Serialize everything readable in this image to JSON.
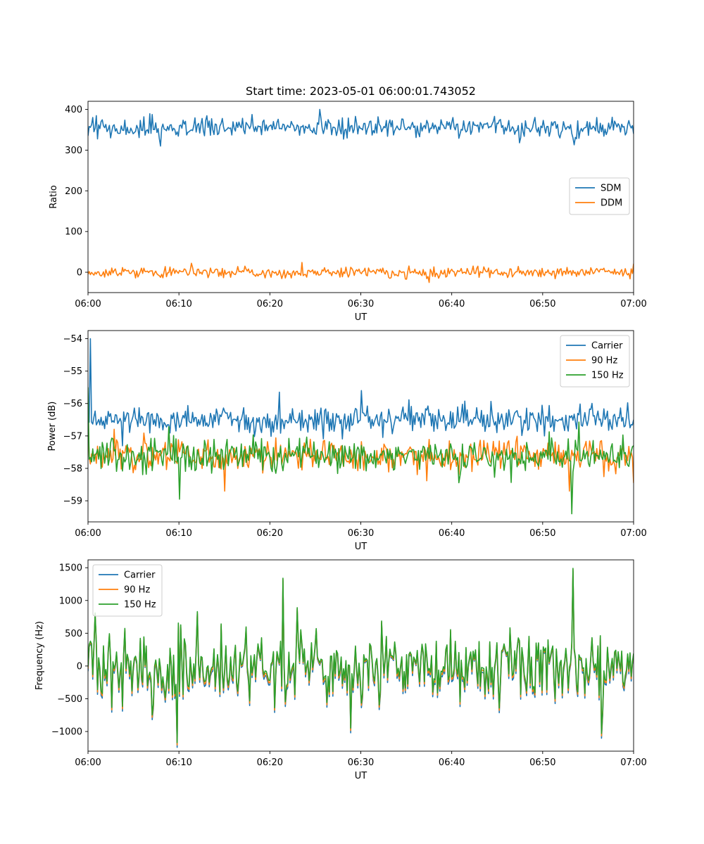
{
  "chart_data": [
    {
      "type": "line",
      "title": "Start time: 2023-05-01 06:00:01.743052",
      "xlabel": "UT",
      "ylabel": "Ratio",
      "xlim": [
        "06:00",
        "07:00"
      ],
      "ylim": [
        -50,
        420
      ],
      "yticks": [
        0,
        100,
        200,
        300,
        400
      ],
      "xticks": [
        "06:00",
        "06:10",
        "06:20",
        "06:30",
        "06:40",
        "06:50",
        "07:00"
      ],
      "legend": "center-right",
      "grid": false,
      "series": [
        {
          "name": "SDM",
          "color": "#1f77b4",
          "mean": 355,
          "noise": 16,
          "points": 460,
          "values_sample": [
            {
              "t": "06:00",
              "y": 335
            },
            {
              "t": "06:08",
              "y": 310
            },
            {
              "t": "06:25.5",
              "y": 400
            },
            {
              "t": "06:47.5",
              "y": 318
            },
            {
              "t": "06:53.5",
              "y": 313
            },
            {
              "t": "07:00",
              "y": 340
            }
          ]
        },
        {
          "name": "DDM",
          "color": "#ff7f0e",
          "mean": 0,
          "noise": 9,
          "points": 460,
          "values_sample": [
            {
              "t": "06:00",
              "y": -5
            },
            {
              "t": "06:23.5",
              "y": 24
            },
            {
              "t": "06:37.5",
              "y": -25
            },
            {
              "t": "07:00",
              "y": 21
            }
          ]
        }
      ]
    },
    {
      "type": "line",
      "title": "",
      "xlabel": "UT",
      "ylabel": "Power (dB)",
      "xlim": [
        "06:00",
        "07:00"
      ],
      "ylim": [
        -59.65,
        -53.75
      ],
      "yticks": [
        -59,
        -58,
        -57,
        -56,
        -55,
        -54
      ],
      "xticks": [
        "06:00",
        "06:10",
        "06:20",
        "06:30",
        "06:40",
        "06:50",
        "07:00"
      ],
      "legend": "top-right",
      "grid": false,
      "series": [
        {
          "name": "Carrier",
          "color": "#1f77b4",
          "mean": -56.5,
          "noise": 0.28,
          "points": 460,
          "values_sample": [
            {
              "t": "06:00",
              "y": -56.6
            },
            {
              "t": "06:00.2",
              "y": -54.0
            },
            {
              "t": "06:21",
              "y": -55.65
            },
            {
              "t": "06:30",
              "y": -55.6
            },
            {
              "t": "07:00",
              "y": -56.5
            }
          ]
        },
        {
          "name": "90 Hz",
          "color": "#ff7f0e",
          "mean": -57.6,
          "noise": 0.3,
          "points": 460,
          "values_sample": [
            {
              "t": "06:00",
              "y": -56.5
            },
            {
              "t": "06:15",
              "y": -58.7
            },
            {
              "t": "06:53",
              "y": -58.7
            },
            {
              "t": "07:00",
              "y": -58.45
            }
          ]
        },
        {
          "name": "150 Hz",
          "color": "#2ca02c",
          "mean": -57.6,
          "noise": 0.35,
          "points": 460,
          "values_sample": [
            {
              "t": "06:00",
              "y": -55.5
            },
            {
              "t": "06:10",
              "y": -58.95
            },
            {
              "t": "06:53.2",
              "y": -59.4
            },
            {
              "t": "07:00",
              "y": -57.3
            }
          ]
        }
      ]
    },
    {
      "type": "line",
      "title": "",
      "xlabel": "UT",
      "ylabel": "Frequency (Hz)",
      "xlim": [
        "06:00",
        "07:00"
      ],
      "ylim": [
        -1300,
        1620
      ],
      "yticks": [
        -1000,
        -500,
        0,
        500,
        1000,
        1500
      ],
      "xticks": [
        "06:00",
        "06:10",
        "06:20",
        "06:30",
        "06:40",
        "06:50",
        "07:00"
      ],
      "legend": "top-left",
      "grid": false,
      "series": [
        {
          "name": "Carrier",
          "color": "#1f77b4",
          "offset": -60,
          "points": 460
        },
        {
          "name": "90 Hz",
          "color": "#ff7f0e",
          "offset": -30,
          "points": 460
        },
        {
          "name": "150 Hz",
          "color": "#2ca02c",
          "offset": 0,
          "noise": 330,
          "points": 460,
          "values_sample": [
            {
              "t": "06:09.8",
              "y": -1170
            },
            {
              "t": "06:21.5",
              "y": 1340
            },
            {
              "t": "06:53.3",
              "y": 1490
            },
            {
              "t": "06:56.5",
              "y": -1030
            }
          ]
        }
      ]
    }
  ]
}
